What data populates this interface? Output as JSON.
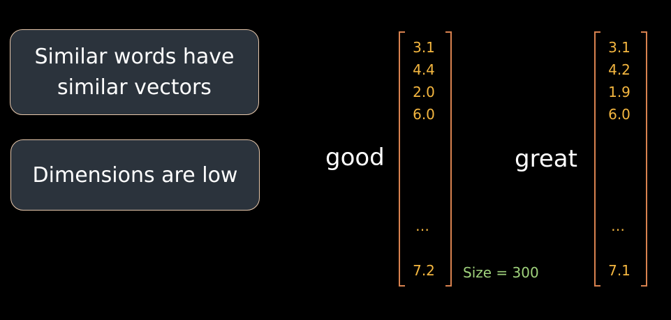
{
  "cards": [
    {
      "lines": [
        "Similar words have",
        "similar vectors"
      ]
    },
    {
      "lines": [
        "Dimensions are low"
      ]
    }
  ],
  "vectors": [
    {
      "word": "good",
      "values": [
        "3.1",
        "4.4",
        "2.0",
        "6.0"
      ],
      "ellipsis": "…",
      "last": "7.2"
    },
    {
      "word": "great",
      "values": [
        "3.1",
        "4.2",
        "1.9",
        "6.0"
      ],
      "ellipsis": "…",
      "last": "7.1"
    }
  ],
  "size_note": "Size = 300",
  "colors": {
    "background": "#000000",
    "card_fill": "#2b333c",
    "card_border": "#e9c9ad",
    "value_text": "#f5b740",
    "bracket": "#d9824f",
    "note_text": "#9fd27c"
  }
}
